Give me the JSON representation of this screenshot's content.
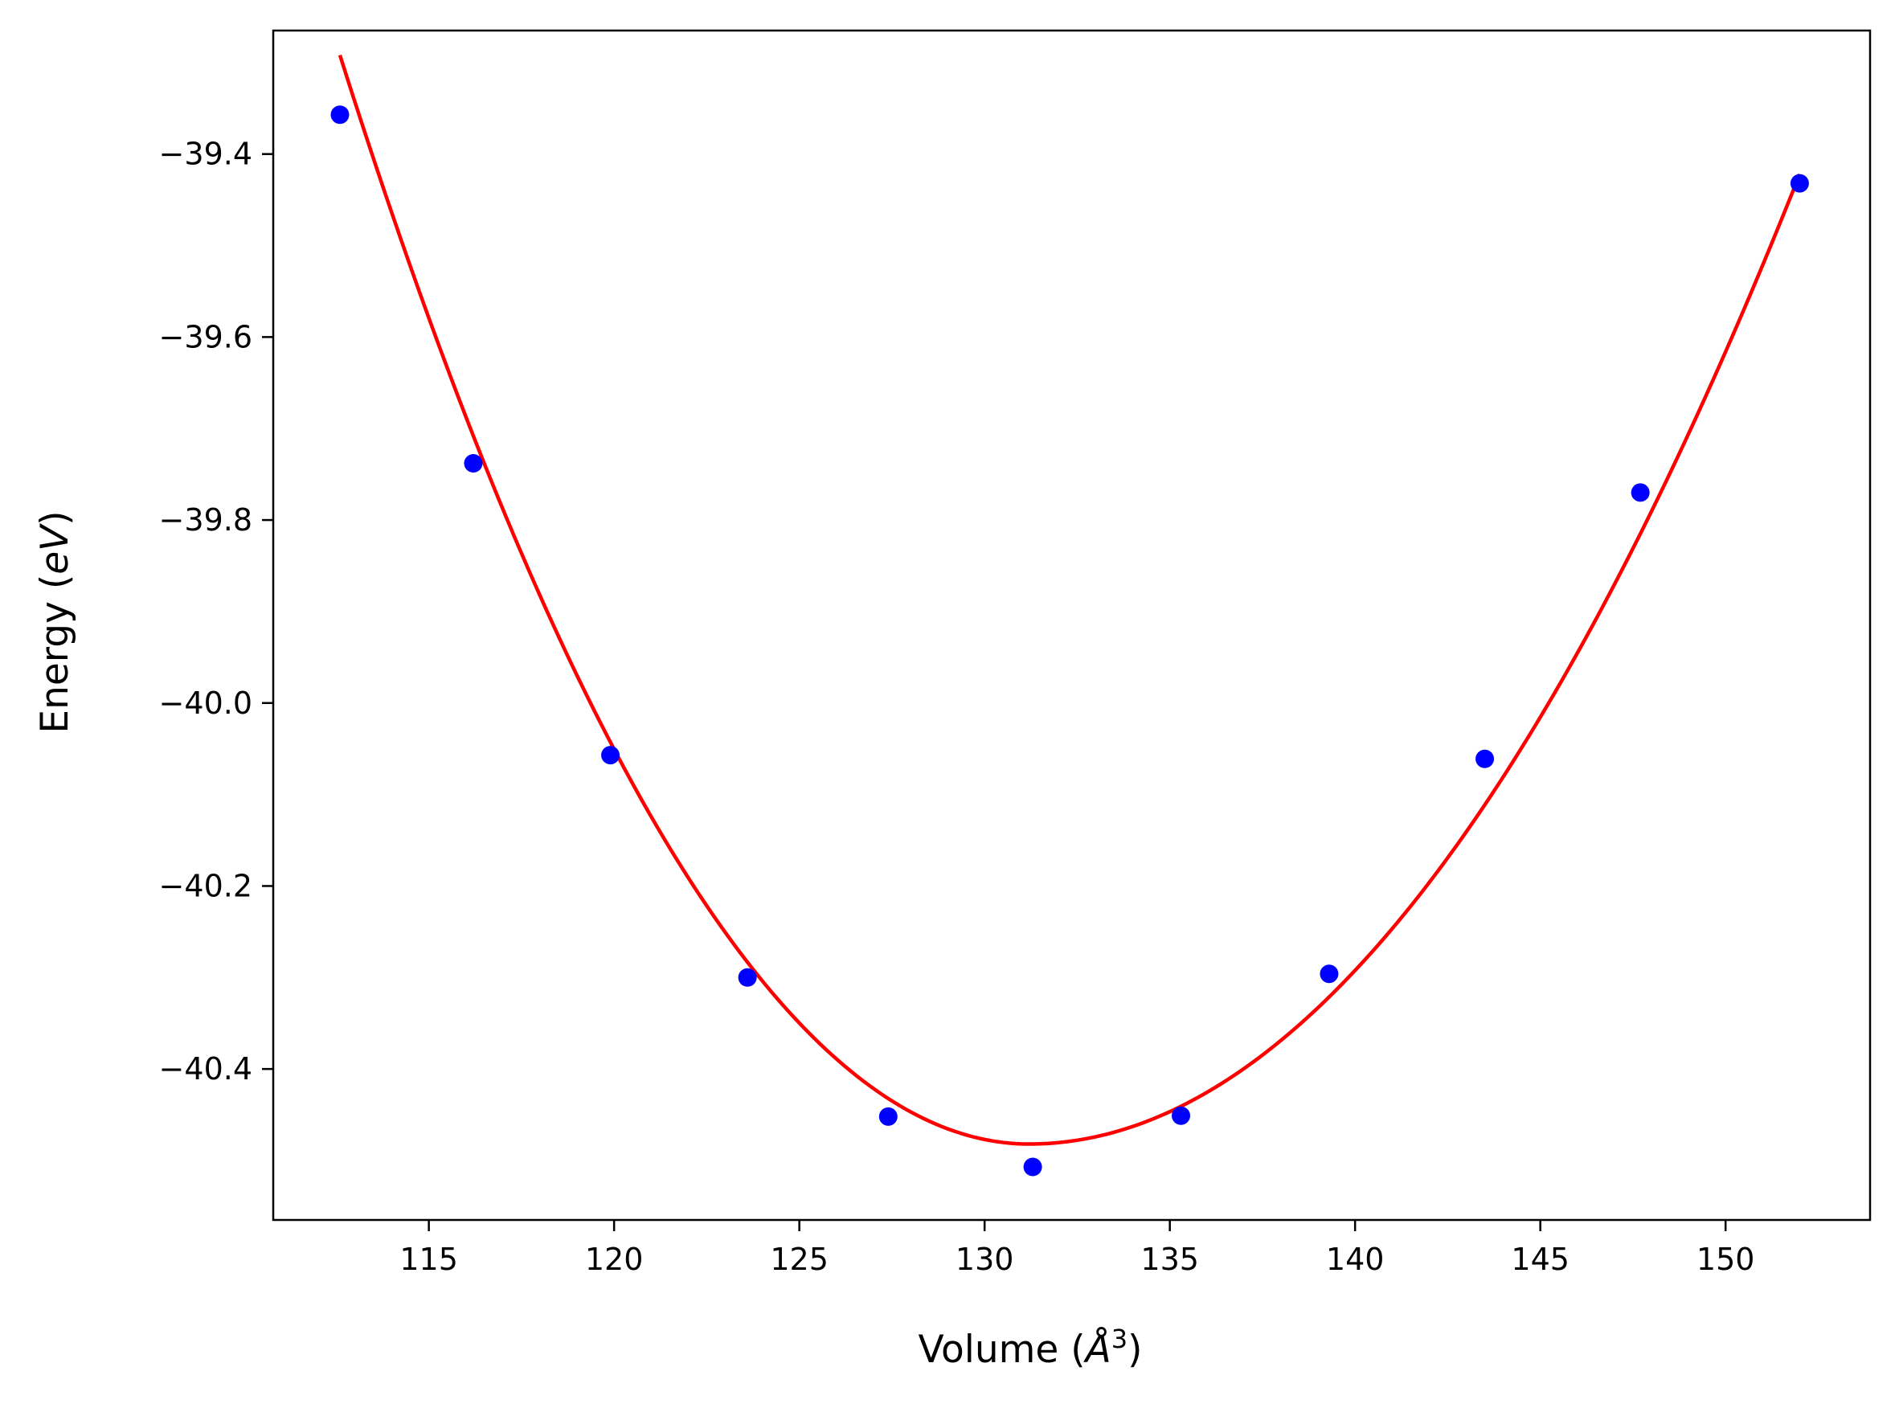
{
  "chart_data": {
    "type": "scatter",
    "xlabel_prefix": "Volume (",
    "xlabel_math": "Å",
    "xlabel_sup": "3",
    "xlabel_suffix": ")",
    "ylabel_prefix": "Energy (",
    "ylabel_math": "eV",
    "ylabel_suffix": ")",
    "xlim": [
      110.8,
      153.9
    ],
    "ylim": [
      -40.565,
      -39.265
    ],
    "xticks": [
      115,
      120,
      125,
      130,
      135,
      140,
      145,
      150
    ],
    "xtick_labels": [
      "115",
      "120",
      "125",
      "130",
      "135",
      "140",
      "145",
      "150"
    ],
    "yticks": [
      -39.4,
      -39.6,
      -39.8,
      -40.0,
      -40.2,
      -40.4
    ],
    "ytick_labels": [
      "−39.4",
      "−39.6",
      "−39.8",
      "−40.0",
      "−40.2",
      "−40.4"
    ],
    "grid": false,
    "series": [
      {
        "kind": "points",
        "color": "#0000ff",
        "points": [
          [
            112.6,
            -39.357
          ],
          [
            116.2,
            -39.738
          ],
          [
            119.9,
            -40.057
          ],
          [
            123.6,
            -40.3
          ],
          [
            127.4,
            -40.452
          ],
          [
            131.3,
            -40.507
          ],
          [
            135.3,
            -40.451
          ],
          [
            139.3,
            -40.296
          ],
          [
            143.5,
            -40.061
          ],
          [
            147.7,
            -39.77
          ],
          [
            152.0,
            -39.432
          ]
        ]
      },
      {
        "kind": "fit-curve",
        "color": "#ff0000",
        "x_range": [
          112.6,
          152.0
        ],
        "v0": 131.2,
        "e0": -40.482,
        "left_coeff": 0.00344,
        "right_coeff": 0.00245
      }
    ]
  },
  "colors": {
    "axes": "#000000",
    "background": "#ffffff"
  }
}
